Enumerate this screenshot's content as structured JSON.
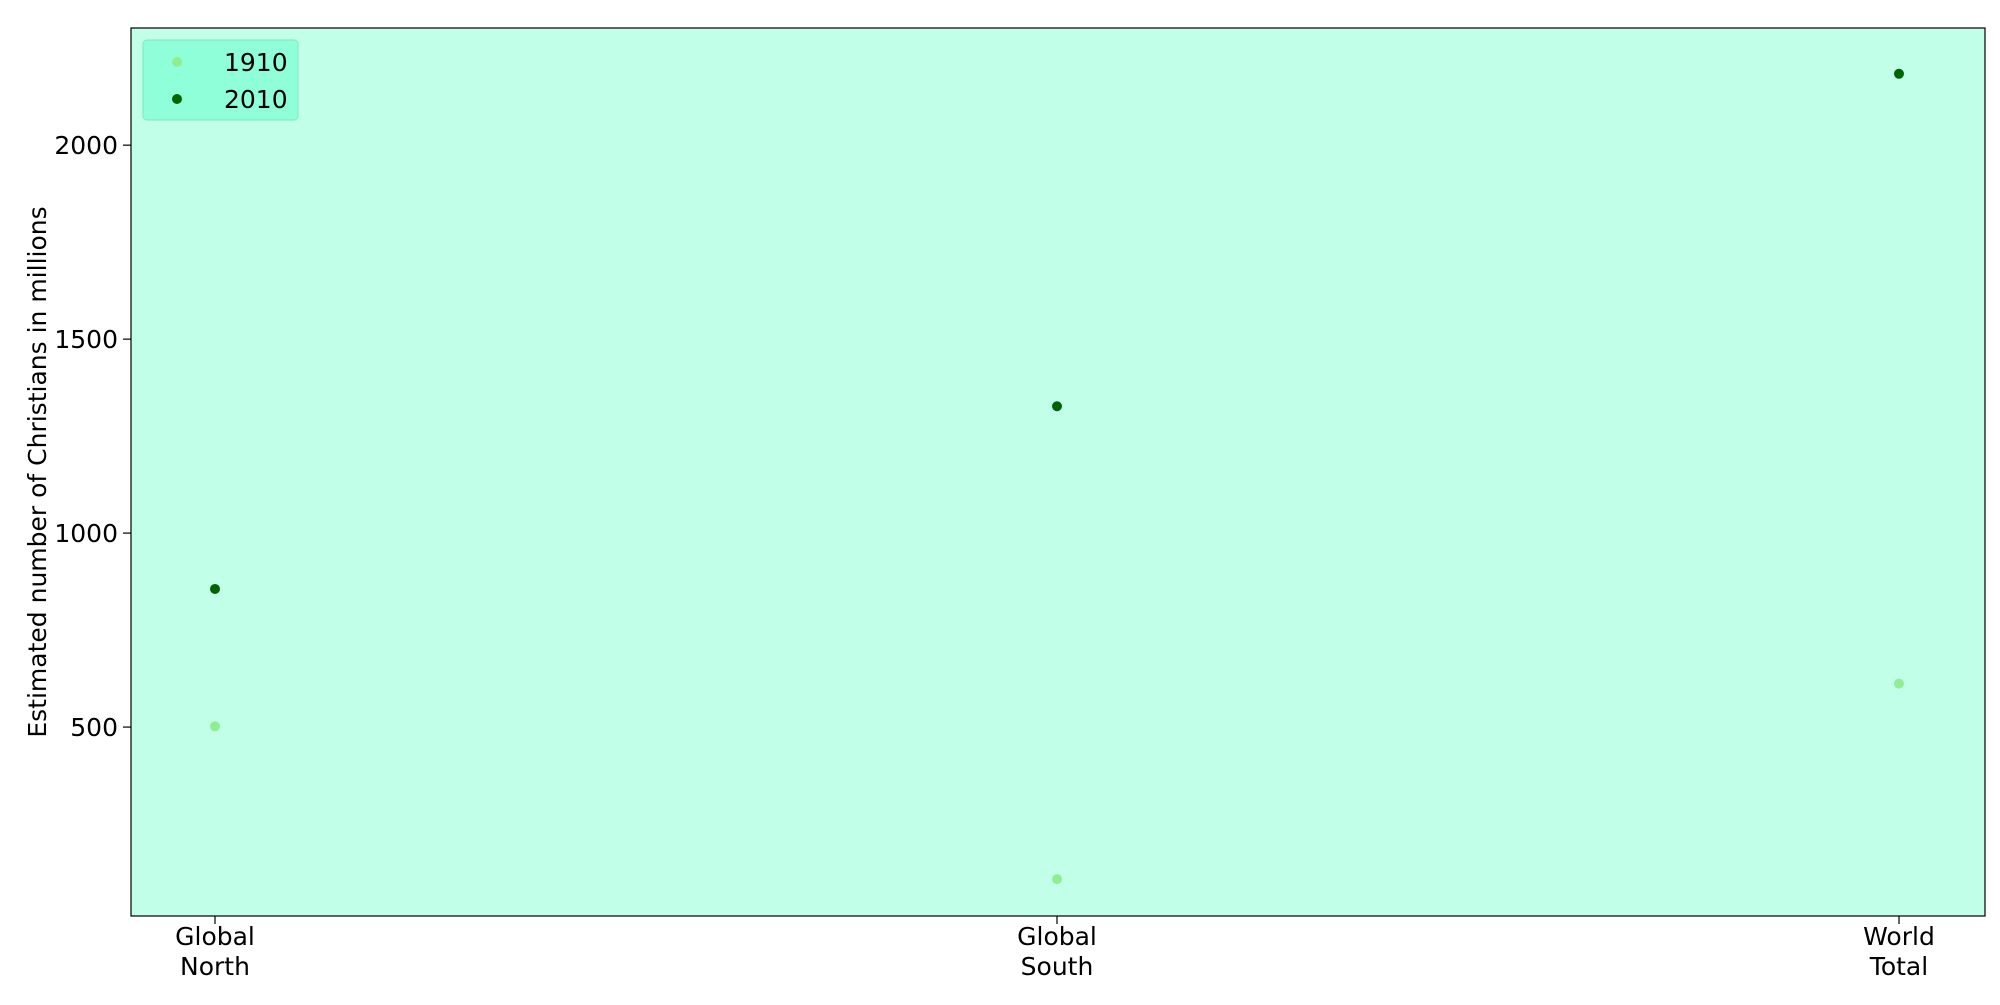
{
  "chart_data": {
    "type": "scatter",
    "title": "",
    "xlabel": "",
    "ylabel": "Estimated number of Christians in millions",
    "categories": [
      "Global\nNorth",
      "Global\nSouth",
      "World\nTotal"
    ],
    "series": [
      {
        "name": "1910",
        "color": "#90ee90",
        "values": [
          502,
          108,
          612
        ]
      },
      {
        "name": "2010",
        "color": "#006400",
        "values": [
          856,
          1327,
          2184
        ]
      }
    ],
    "ylim": [
      13,
      2302
    ],
    "yticks": [
      500,
      1000,
      1500,
      2000
    ],
    "grid": false,
    "legend_position": "top-left",
    "plot_background": "#c1ffe9",
    "legend_background": "#8fffd9"
  }
}
